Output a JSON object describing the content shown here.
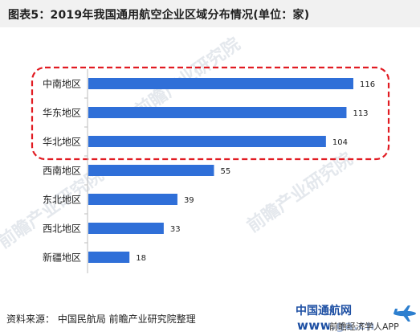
{
  "title": "图表5：2019年我国通用航空企业区域分布情况(单位：家)",
  "source": "资料来源：   中国民航局 前瞻产业研究院整理",
  "watermarks": [
    "前瞻产业研究院",
    "前瞻产业研究院",
    "前瞻产业研究院"
  ],
  "footer": {
    "logo_text": "中国通航网",
    "logo_url": "www.ga.cn",
    "app_text": "前瞻经济学人APP"
  },
  "colors": {
    "bar": "#2f6fd8",
    "highlight_border": "#e11b22",
    "axis": "#bdbdbd"
  },
  "icons": [
    "plane-icon",
    "watermark-logo-icon"
  ],
  "chart_data": {
    "type": "bar",
    "orientation": "horizontal",
    "categories": [
      "中南地区",
      "华东地区",
      "华北地区",
      "西南地区",
      "东北地区",
      "西北地区",
      "新疆地区"
    ],
    "values": [
      116,
      113,
      104,
      55,
      39,
      33,
      18
    ],
    "highlighted_categories": [
      "中南地区",
      "华东地区",
      "华北地区"
    ],
    "xlim": [
      0,
      116
    ],
    "grid": false,
    "legend": "none"
  }
}
